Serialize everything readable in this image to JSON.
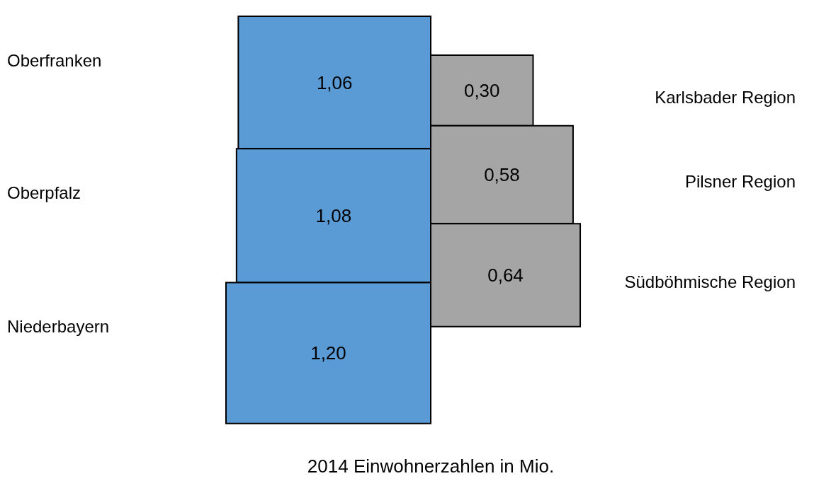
{
  "chart_data": {
    "type": "other",
    "xlabel": "2014 Einwohnerzahlen in Mio.",
    "categories": [
      "Oberfranken",
      "Oberpfalz",
      "Niederbayern",
      "Karlsbader Region",
      "Pilsner Region",
      "Südböhmische Region"
    ],
    "values": [
      1.06,
      1.08,
      1.2,
      0.3,
      0.58,
      0.64
    ],
    "value_labels": [
      "1,06",
      "1,08",
      "1,20",
      "0,30",
      "0,58",
      "0,64"
    ],
    "colors": [
      "#5b9bd5",
      "#5b9bd5",
      "#5b9bd5",
      "#a5a5a5",
      "#a5a5a5",
      "#a5a5a5"
    ]
  }
}
